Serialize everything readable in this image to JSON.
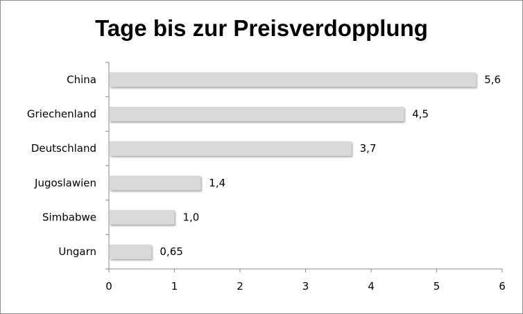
{
  "chart_data": {
    "type": "bar",
    "orientation": "horizontal",
    "title": "Tage bis zur Preisverdopplung",
    "categories": [
      "China",
      "Griechenland",
      "Deutschland",
      "Jugoslawien",
      "Simbabwe",
      "Ungarn"
    ],
    "values": [
      5.6,
      4.5,
      3.7,
      1.4,
      1.0,
      0.65
    ],
    "value_labels": [
      "5,6",
      "4,5",
      "3,7",
      "1,4",
      "1,0",
      "0,65"
    ],
    "xlim": [
      0,
      6
    ],
    "xticks": [
      "0",
      "1",
      "2",
      "3",
      "4",
      "5",
      "6"
    ],
    "xlabel": "",
    "ylabel": "",
    "bar_color": "#d9d9d9",
    "grid": false,
    "legend": "none"
  }
}
